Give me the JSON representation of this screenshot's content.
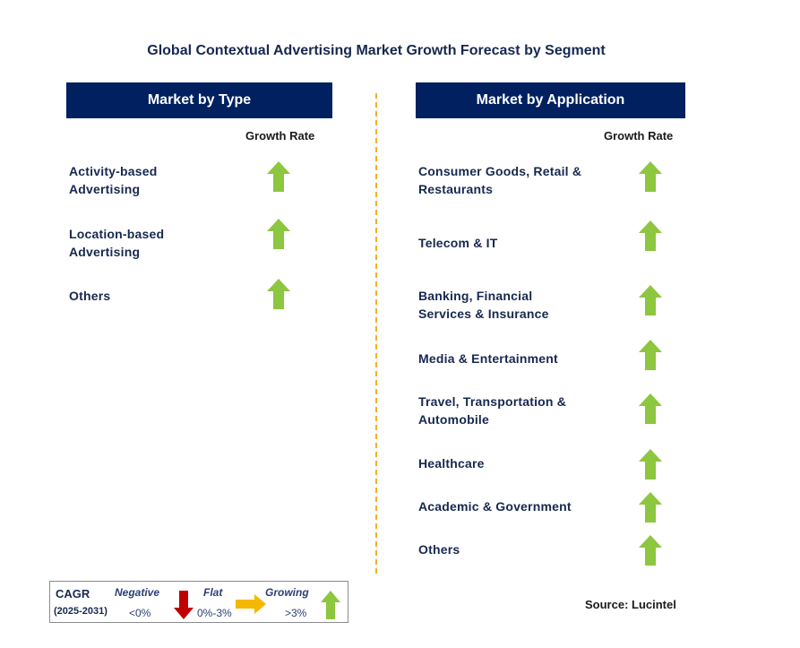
{
  "title": "Global Contextual Advertising Market Growth Forecast by Segment",
  "left_panel": {
    "header": "Market by Type",
    "column_label": "Growth Rate",
    "rows": [
      {
        "label": "Activity-based\nAdvertising",
        "trend": "growing"
      },
      {
        "label": "Location-based\nAdvertising",
        "trend": "growing"
      },
      {
        "label": "Others",
        "trend": "growing"
      }
    ]
  },
  "right_panel": {
    "header": "Market by Application",
    "column_label": "Growth Rate",
    "rows": [
      {
        "label": "Consumer Goods, Retail &\nRestaurants",
        "trend": "growing"
      },
      {
        "label": "Telecom & IT",
        "trend": "growing"
      },
      {
        "label": "Banking, Financial\nServices & Insurance",
        "trend": "growing"
      },
      {
        "label": "Media & Entertainment",
        "trend": "growing"
      },
      {
        "label": "Travel, Transportation &\nAutomobile",
        "trend": "growing"
      },
      {
        "label": "Healthcare",
        "trend": "growing"
      },
      {
        "label": "Academic & Government",
        "trend": "growing"
      },
      {
        "label": "Others",
        "trend": "growing"
      }
    ]
  },
  "legend": {
    "cagr_label": "CAGR",
    "period": "(2025-2031)",
    "negative_label": "Negative",
    "negative_range": "<0%",
    "flat_label": "Flat",
    "flat_range": "0%-3%",
    "growing_label": "Growing",
    "growing_range": ">3%"
  },
  "source": "Source: Lucintel",
  "colors": {
    "header_bg": "#002060",
    "growing_arrow": "#8dc63f",
    "negative_arrow": "#c00000",
    "flat_arrow": "#f5b800",
    "divider": "#f2b21e"
  },
  "icons": [
    "up-arrow-icon",
    "down-arrow-icon",
    "right-arrow-icon"
  ]
}
